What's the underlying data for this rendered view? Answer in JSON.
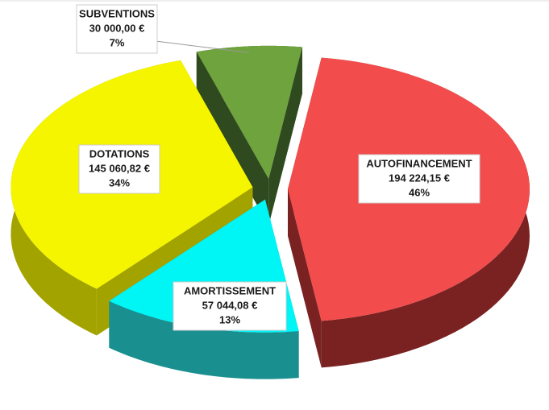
{
  "chart_data": {
    "type": "pie3d",
    "categories": [
      "AUTOFINANCEMENT",
      "AMORTISSEMENT",
      "DOTATIONS",
      "SUBVENTIONS"
    ],
    "values": [
      194224.15,
      57044.08,
      145060.82,
      30000
    ],
    "value_labels": [
      "194 224,15 €",
      "57 044,08 €",
      "145 060,82 €",
      "30 000,00 €"
    ],
    "percent_labels": [
      "46%",
      "13%",
      "34%",
      "7%"
    ],
    "colors": [
      "#f24c4c",
      "#00f5f5",
      "#f5f500",
      "#6fa33d"
    ],
    "side_colors": [
      "#7a2222",
      "#1a8f8f",
      "#a3a300",
      "#2f4a1f"
    ]
  }
}
